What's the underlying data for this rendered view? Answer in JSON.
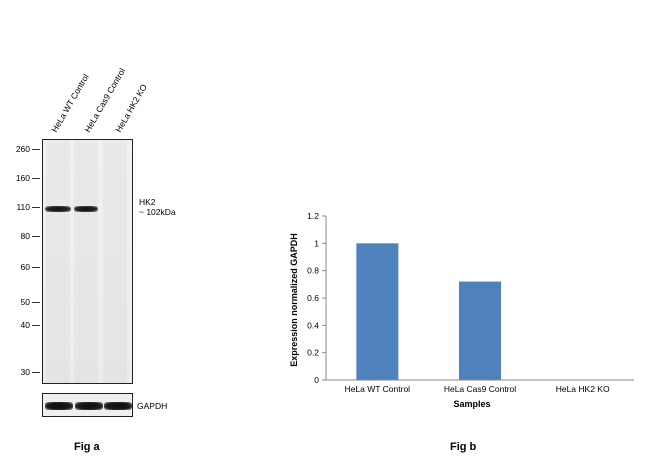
{
  "fig_a": {
    "lane_labels": [
      "HeLa WT Control",
      "HeLa Cas9 Control",
      "HeLa HK2 KO"
    ],
    "mw_markers": [
      "260",
      "160",
      "110",
      "80",
      "60",
      "50",
      "40",
      "30"
    ],
    "band_label": "HK2",
    "band_size": "~ 102kDa",
    "loading_control": "GAPDH",
    "caption": "Fig a"
  },
  "fig_b": {
    "caption": "Fig b"
  },
  "chart_data": {
    "type": "bar",
    "categories": [
      "HeLa WT Control",
      "HeLa Cas9 Control",
      "HeLa HK2 KO"
    ],
    "values": [
      1.0,
      0.72,
      0.0
    ],
    "xlabel": "Samples",
    "ylabel": "Expression  normalized GAPDH",
    "ylim": [
      0,
      1.2
    ],
    "yticks": [
      "0",
      "0.2",
      "0.4",
      "0.6",
      "0.8",
      "1",
      "1.2"
    ],
    "bar_color": "#4f81bd",
    "grid": false,
    "legend": "none"
  }
}
